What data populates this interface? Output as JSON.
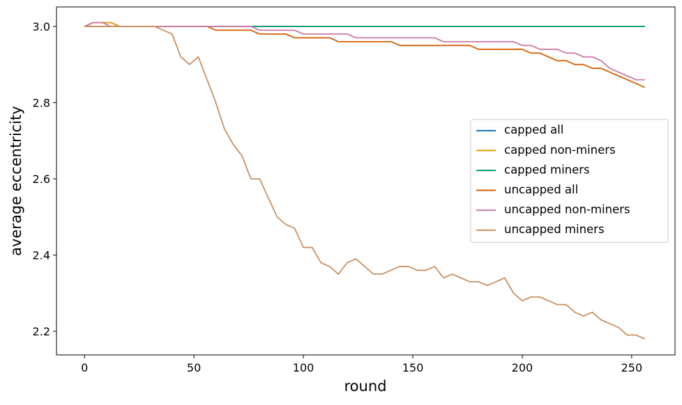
{
  "chart_data": {
    "type": "line",
    "x_label": "round",
    "y_label": "average eccentricity",
    "x": [
      0,
      4,
      8,
      12,
      16,
      20,
      24,
      28,
      32,
      36,
      40,
      44,
      48,
      52,
      56,
      60,
      64,
      68,
      72,
      76,
      80,
      84,
      88,
      92,
      96,
      100,
      104,
      108,
      112,
      116,
      120,
      124,
      128,
      132,
      136,
      140,
      144,
      148,
      152,
      156,
      160,
      164,
      168,
      172,
      176,
      180,
      184,
      188,
      192,
      196,
      200,
      204,
      208,
      212,
      216,
      220,
      224,
      228,
      232,
      236,
      240,
      244,
      248,
      252,
      256
    ],
    "series": [
      {
        "name": "capped all",
        "color": "#0072b2",
        "values": [
          3.0,
          3.01,
          3.01,
          3.01,
          3.0,
          3.0,
          3.0,
          3.0,
          3.0,
          3.0,
          3.0,
          3.0,
          3.0,
          3.0,
          3.0,
          3.0,
          3.0,
          3.0,
          3.0,
          3.0,
          3.0,
          3.0,
          3.0,
          3.0,
          3.0,
          3.0,
          3.0,
          3.0,
          3.0,
          3.0,
          3.0,
          3.0,
          3.0,
          3.0,
          3.0,
          3.0,
          3.0,
          3.0,
          3.0,
          3.0,
          3.0,
          3.0,
          3.0,
          3.0,
          3.0,
          3.0,
          3.0,
          3.0,
          3.0,
          3.0,
          3.0,
          3.0,
          3.0,
          3.0,
          3.0,
          3.0,
          3.0,
          3.0,
          3.0,
          3.0,
          3.0,
          3.0,
          3.0,
          3.0,
          3.0
        ]
      },
      {
        "name": "capped non-miners",
        "color": "#e69f00",
        "values": [
          3.0,
          3.01,
          3.01,
          3.01,
          3.0,
          3.0,
          3.0,
          3.0,
          3.0,
          3.0,
          3.0,
          3.0,
          3.0,
          3.0,
          3.0,
          3.0,
          3.0,
          3.0,
          3.0,
          3.0,
          3.0,
          3.0,
          3.0,
          3.0,
          3.0,
          3.0,
          3.0,
          3.0,
          3.0,
          3.0,
          3.0,
          3.0,
          3.0,
          3.0,
          3.0,
          3.0,
          3.0,
          3.0,
          3.0,
          3.0,
          3.0,
          3.0,
          3.0,
          3.0,
          3.0,
          3.0,
          3.0,
          3.0,
          3.0,
          3.0,
          3.0,
          3.0,
          3.0,
          3.0,
          3.0,
          3.0,
          3.0,
          3.0,
          3.0,
          3.0,
          3.0,
          3.0,
          3.0,
          3.0,
          3.0
        ]
      },
      {
        "name": "capped miners",
        "color": "#009e73",
        "values": [
          3.0,
          3.0,
          3.0,
          3.0,
          3.0,
          3.0,
          3.0,
          3.0,
          3.0,
          3.0,
          3.0,
          3.0,
          3.0,
          3.0,
          3.0,
          3.0,
          3.0,
          3.0,
          3.0,
          3.0,
          3.0,
          3.0,
          3.0,
          3.0,
          3.0,
          3.0,
          3.0,
          3.0,
          3.0,
          3.0,
          3.0,
          3.0,
          3.0,
          3.0,
          3.0,
          3.0,
          3.0,
          3.0,
          3.0,
          3.0,
          3.0,
          3.0,
          3.0,
          3.0,
          3.0,
          3.0,
          3.0,
          3.0,
          3.0,
          3.0,
          3.0,
          3.0,
          3.0,
          3.0,
          3.0,
          3.0,
          3.0,
          3.0,
          3.0,
          3.0,
          3.0,
          3.0,
          3.0,
          3.0,
          3.0
        ]
      },
      {
        "name": "uncapped all",
        "color": "#d55e00",
        "values": [
          3.0,
          3.0,
          3.0,
          3.0,
          3.0,
          3.0,
          3.0,
          3.0,
          3.0,
          3.0,
          3.0,
          3.0,
          3.0,
          3.0,
          3.0,
          2.99,
          2.99,
          2.99,
          2.99,
          2.99,
          2.98,
          2.98,
          2.98,
          2.98,
          2.97,
          2.97,
          2.97,
          2.97,
          2.97,
          2.96,
          2.96,
          2.96,
          2.96,
          2.96,
          2.96,
          2.96,
          2.95,
          2.95,
          2.95,
          2.95,
          2.95,
          2.95,
          2.95,
          2.95,
          2.95,
          2.94,
          2.94,
          2.94,
          2.94,
          2.94,
          2.94,
          2.93,
          2.93,
          2.92,
          2.91,
          2.91,
          2.9,
          2.9,
          2.89,
          2.89,
          2.88,
          2.87,
          2.86,
          2.85,
          2.84
        ]
      },
      {
        "name": "uncapped non-miners",
        "color": "#cc79a7",
        "values": [
          3.0,
          3.01,
          3.01,
          3.0,
          3.0,
          3.0,
          3.0,
          3.0,
          3.0,
          3.0,
          3.0,
          3.0,
          3.0,
          3.0,
          3.0,
          3.0,
          3.0,
          3.0,
          3.0,
          3.0,
          2.99,
          2.99,
          2.99,
          2.99,
          2.99,
          2.98,
          2.98,
          2.98,
          2.98,
          2.98,
          2.98,
          2.97,
          2.97,
          2.97,
          2.97,
          2.97,
          2.97,
          2.97,
          2.97,
          2.97,
          2.97,
          2.96,
          2.96,
          2.96,
          2.96,
          2.96,
          2.96,
          2.96,
          2.96,
          2.96,
          2.95,
          2.95,
          2.94,
          2.94,
          2.94,
          2.93,
          2.93,
          2.92,
          2.92,
          2.91,
          2.89,
          2.88,
          2.87,
          2.86,
          2.86
        ]
      },
      {
        "name": "uncapped miners",
        "color": "#ca9161",
        "values": [
          3.0,
          3.0,
          3.0,
          3.0,
          3.0,
          3.0,
          3.0,
          3.0,
          3.0,
          2.99,
          2.98,
          2.92,
          2.9,
          2.92,
          2.86,
          2.8,
          2.73,
          2.69,
          2.66,
          2.6,
          2.6,
          2.55,
          2.5,
          2.48,
          2.47,
          2.42,
          2.42,
          2.38,
          2.37,
          2.35,
          2.38,
          2.39,
          2.37,
          2.35,
          2.35,
          2.36,
          2.37,
          2.37,
          2.36,
          2.36,
          2.37,
          2.34,
          2.35,
          2.34,
          2.33,
          2.33,
          2.32,
          2.33,
          2.34,
          2.3,
          2.28,
          2.29,
          2.29,
          2.28,
          2.27,
          2.27,
          2.25,
          2.24,
          2.25,
          2.23,
          2.22,
          2.21,
          2.19,
          2.19,
          2.18
        ]
      }
    ],
    "xlim": [
      -12.8,
      269.8
    ],
    "xticks": [
      0,
      50,
      100,
      150,
      200,
      250
    ],
    "ylim": [
      2.138,
      3.051
    ],
    "yticks": [
      2.2,
      2.4,
      2.6,
      2.8,
      {
        "value": 3,
        "label": "3.0"
      }
    ],
    "grid": false,
    "legend": "center right"
  }
}
